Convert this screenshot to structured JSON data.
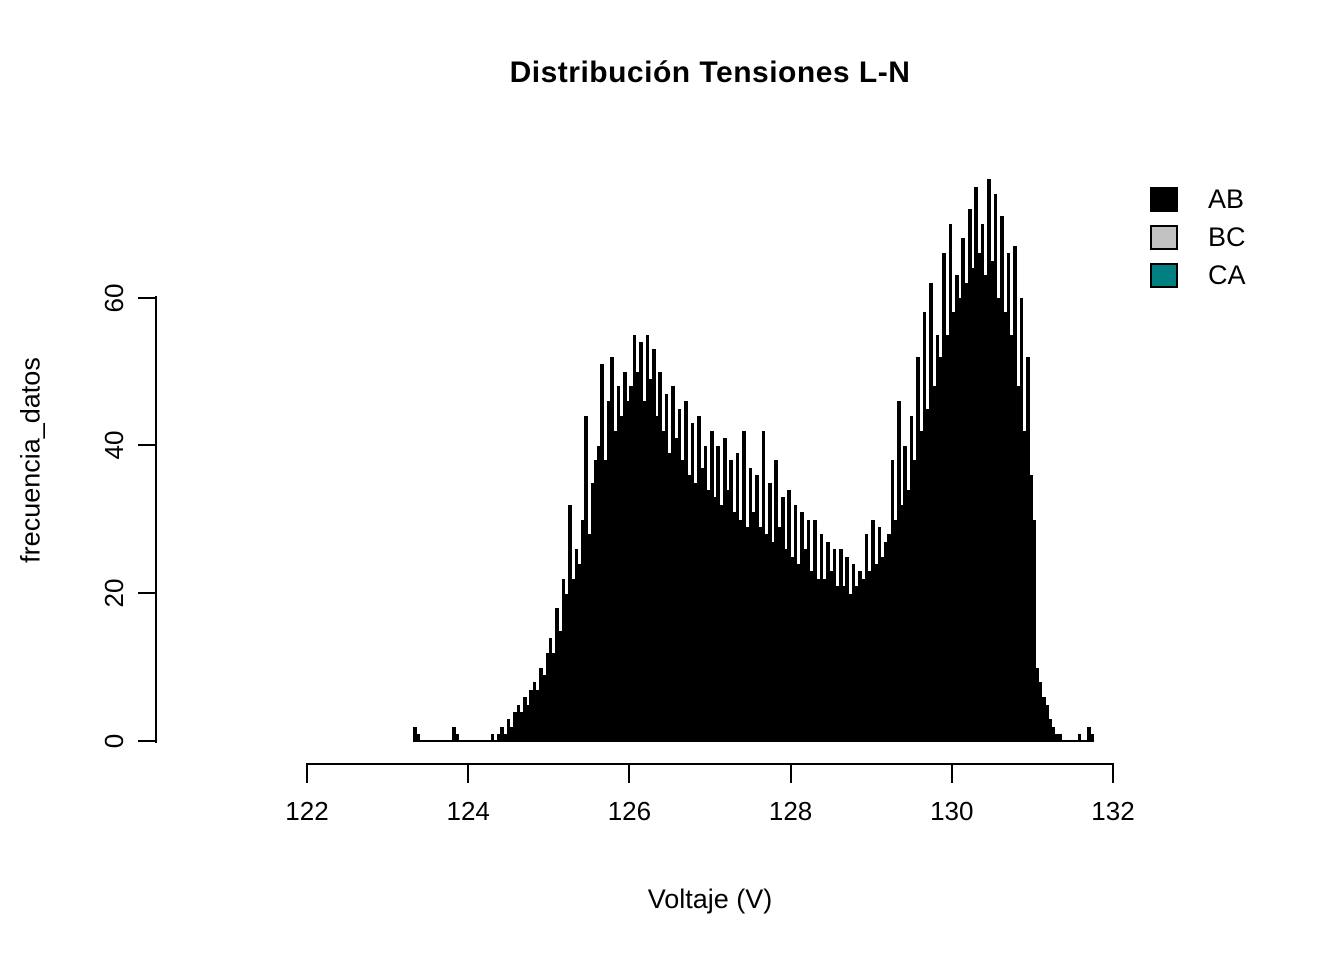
{
  "chart_data": {
    "type": "bar",
    "subtype": "histogram",
    "title": "Distribución Tensiones L-N",
    "xlabel": "Voltaje (V)",
    "ylabel": "frecuencia_datos",
    "xlim": [
      122,
      132
    ],
    "ylim": [
      0,
      60
    ],
    "x_ticks": [
      "122",
      "124",
      "126",
      "128",
      "130",
      "132"
    ],
    "x_tick_values": [
      122,
      124,
      126,
      128,
      130,
      132
    ],
    "y_ticks": [
      "0",
      "20",
      "40",
      "60"
    ],
    "y_tick_values": [
      0,
      20,
      40,
      60
    ],
    "grid": false,
    "legend_position": "top-right",
    "legend": [
      {
        "label": "AB",
        "color": "#000000"
      },
      {
        "label": "BC",
        "color": "#c2c2c2"
      },
      {
        "label": "CA",
        "color": "#008080"
      }
    ],
    "visible_series": "AB",
    "bar_color": "#000000",
    "bin_start": 123.32,
    "bin_width": 0.04,
    "values": [
      2,
      1,
      0,
      0,
      0,
      0,
      0,
      0,
      0,
      0,
      0,
      0,
      2,
      1,
      0,
      0,
      0,
      0,
      0,
      0,
      0,
      0,
      0,
      0,
      1,
      0,
      1,
      2,
      1,
      3,
      2,
      4,
      5,
      4,
      6,
      5,
      7,
      8,
      7,
      10,
      9,
      12,
      14,
      12,
      18,
      15,
      22,
      20,
      32,
      22,
      26,
      24,
      30,
      44,
      28,
      35,
      38,
      40,
      51,
      38,
      46,
      52,
      42,
      48,
      44,
      50,
      46,
      48,
      55,
      50,
      54,
      46,
      55,
      49,
      53,
      44,
      50,
      42,
      47,
      39,
      48,
      41,
      45,
      38,
      46,
      36,
      43,
      35,
      44,
      37,
      40,
      34,
      42,
      33,
      40,
      32,
      41,
      34,
      38,
      31,
      39,
      30,
      42,
      29,
      37,
      31,
      36,
      29,
      42,
      28,
      35,
      27,
      38,
      29,
      33,
      26,
      34,
      25,
      32,
      24,
      31,
      26,
      30,
      23,
      30,
      22,
      28,
      22,
      27,
      23,
      26,
      21,
      26,
      21,
      25,
      20,
      24,
      21,
      23,
      22,
      28,
      23,
      30,
      24,
      29,
      25,
      27,
      28,
      38,
      30,
      46,
      32,
      40,
      34,
      44,
      38,
      52,
      42,
      58,
      45,
      62,
      48,
      55,
      52,
      66,
      55,
      70,
      58,
      63,
      60,
      68,
      62,
      72,
      64,
      75,
      66,
      70,
      63,
      76,
      65,
      74,
      60,
      71,
      58,
      66,
      55,
      67,
      48,
      60,
      42,
      52,
      36,
      30,
      10,
      8,
      6,
      5,
      3,
      2,
      1,
      1,
      0,
      0,
      0,
      0,
      0,
      1,
      0,
      0,
      2,
      1
    ]
  }
}
